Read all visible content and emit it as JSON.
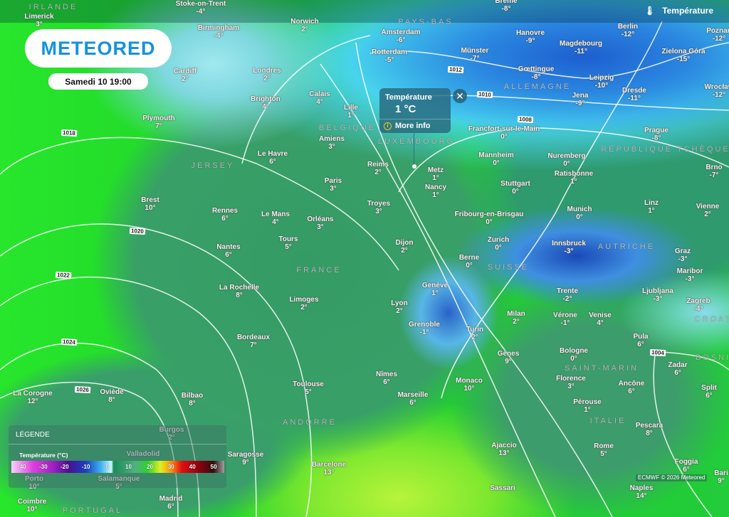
{
  "brand": "METEORED",
  "datetime": "Samedi 10 19:00",
  "layer": {
    "label": "Température",
    "icon": "thermometer-icon"
  },
  "popup": {
    "title": "Température",
    "value": "1 °C",
    "more_info": "More info",
    "close_icon": "close-icon"
  },
  "legend": {
    "title": "LÉGENDE",
    "scale_title": "Température (°C)",
    "ticks": [
      "-40",
      "-30",
      "-20",
      "-10",
      "0",
      "10",
      "20",
      "30",
      "40",
      "50"
    ]
  },
  "attribution": "ECMWF © 2026 Meteored",
  "colors": {
    "brand": "#1592e0",
    "land": "#38a067",
    "sea": "#1fd12a",
    "cold": "#2a86e0"
  },
  "countries": [
    "IRLANDE",
    "PAYS-BAS",
    "ALLEMAGNE",
    "BELGIQUE",
    "LUXEMBOURG",
    "RÉPUBLIQUE TCHÈQUE",
    "JERSEY",
    "FRANCE",
    "SUISSE",
    "AUTRICHE",
    "SAINT-MARIN",
    "ITALIE",
    "ANDORRE",
    "PORTUGAL",
    "CROATIE",
    "BOSNIE-"
  ],
  "isobars": [
    "1018",
    "1012",
    "1010",
    "1008",
    "1020",
    "1022",
    "1024",
    "1026",
    "1004"
  ],
  "cities": [
    {
      "name": "Limerick",
      "temp": "3°"
    },
    {
      "name": "Stoke-on-Trent",
      "temp": "-4°"
    },
    {
      "name": "Birmingham",
      "temp": "-4°"
    },
    {
      "name": "Norwich",
      "temp": "2°"
    },
    {
      "name": "Cardiff",
      "temp": "2°"
    },
    {
      "name": "Londres",
      "temp": "2°"
    },
    {
      "name": "Brighton",
      "temp": "4°"
    },
    {
      "name": "Plymouth",
      "temp": "7°"
    },
    {
      "name": "Calais",
      "temp": "4°"
    },
    {
      "name": "Lille",
      "temp": "1°"
    },
    {
      "name": "Amiens",
      "temp": "3°"
    },
    {
      "name": "Amsterdam",
      "temp": "-6°"
    },
    {
      "name": "Rotterdam",
      "temp": "-5°"
    },
    {
      "name": "Brême",
      "temp": "-8°"
    },
    {
      "name": "Münster",
      "temp": "-7°"
    },
    {
      "name": "Hanovre",
      "temp": "-9°"
    },
    {
      "name": "Magdebourg",
      "temp": "-11°"
    },
    {
      "name": "Berlin",
      "temp": "-12°"
    },
    {
      "name": "Poznań",
      "temp": "-12°"
    },
    {
      "name": "Zielona Góra",
      "temp": "-15°"
    },
    {
      "name": "Gœttingue",
      "temp": "-8°"
    },
    {
      "name": "Leipzig",
      "temp": "-10°"
    },
    {
      "name": "Jena",
      "temp": "-9°"
    },
    {
      "name": "Dresde",
      "temp": "-11°"
    },
    {
      "name": "Wrocław",
      "temp": "-12°"
    },
    {
      "name": "Francfort-sur-le-Main",
      "temp": "0°"
    },
    {
      "name": "Prague",
      "temp": "-8°"
    },
    {
      "name": "Mannheim",
      "temp": "0°"
    },
    {
      "name": "Nuremberg",
      "temp": "0°"
    },
    {
      "name": "Ratisbonne",
      "temp": "1°"
    },
    {
      "name": "Brno",
      "temp": "-7°"
    },
    {
      "name": "Le Havre",
      "temp": "6°"
    },
    {
      "name": "Reims",
      "temp": "2°"
    },
    {
      "name": "Metz",
      "temp": "1°"
    },
    {
      "name": "Paris",
      "temp": "3°"
    },
    {
      "name": "Nancy",
      "temp": "1°"
    },
    {
      "name": "Stuttgart",
      "temp": "0°"
    },
    {
      "name": "Brest",
      "temp": "10°"
    },
    {
      "name": "Rennes",
      "temp": "6°"
    },
    {
      "name": "Le Mans",
      "temp": "4°"
    },
    {
      "name": "Orléans",
      "temp": "3°"
    },
    {
      "name": "Troyes",
      "temp": "3°"
    },
    {
      "name": "Fribourg-en-Brisgau",
      "temp": "0°"
    },
    {
      "name": "Munich",
      "temp": "0°"
    },
    {
      "name": "Linz",
      "temp": "1°"
    },
    {
      "name": "Vienne",
      "temp": "2°"
    },
    {
      "name": "Tours",
      "temp": "5°"
    },
    {
      "name": "Dijon",
      "temp": "2°"
    },
    {
      "name": "Zurich",
      "temp": "0°"
    },
    {
      "name": "Innsbruck",
      "temp": "-3°"
    },
    {
      "name": "Graz",
      "temp": "-3°"
    },
    {
      "name": "Nantes",
      "temp": "6°"
    },
    {
      "name": "Berne",
      "temp": "0°"
    },
    {
      "name": "Maribor",
      "temp": "-3°"
    },
    {
      "name": "La Rochelle",
      "temp": "8°"
    },
    {
      "name": "Genève",
      "temp": "1°"
    },
    {
      "name": "Ljubljana",
      "temp": "-3°"
    },
    {
      "name": "Trente",
      "temp": "-2°"
    },
    {
      "name": "Zagreb",
      "temp": "-4°"
    },
    {
      "name": "Limoges",
      "temp": "2°"
    },
    {
      "name": "Lyon",
      "temp": "2°"
    },
    {
      "name": "Milan",
      "temp": "2°"
    },
    {
      "name": "Vérone",
      "temp": "-1°"
    },
    {
      "name": "Venise",
      "temp": "4°"
    },
    {
      "name": "Grenoble",
      "temp": "-1°"
    },
    {
      "name": "Turin",
      "temp": "2°"
    },
    {
      "name": "Bordeaux",
      "temp": "7°"
    },
    {
      "name": "Pula",
      "temp": "6°"
    },
    {
      "name": "Bologne",
      "temp": "0°"
    },
    {
      "name": "Gênes",
      "temp": "9°"
    },
    {
      "name": "Zadar",
      "temp": "6°"
    },
    {
      "name": "Florence",
      "temp": "3°"
    },
    {
      "name": "Ancône",
      "temp": "6°"
    },
    {
      "name": "Toulouse",
      "temp": "5°"
    },
    {
      "name": "Nîmes",
      "temp": "6°"
    },
    {
      "name": "Monaco",
      "temp": "10°"
    },
    {
      "name": "Marseille",
      "temp": "6°"
    },
    {
      "name": "Split",
      "temp": "6°"
    },
    {
      "name": "La Corogne",
      "temp": "12°"
    },
    {
      "name": "Oviède",
      "temp": "8°"
    },
    {
      "name": "Bilbao",
      "temp": "8°"
    },
    {
      "name": "Pérouse",
      "temp": "1°"
    },
    {
      "name": "Burgos",
      "temp": "2°"
    },
    {
      "name": "Pescara",
      "temp": "8°"
    },
    {
      "name": "Saragosse",
      "temp": "9°"
    },
    {
      "name": "Valladolid",
      "temp": ""
    },
    {
      "name": "Ajaccio",
      "temp": "13°"
    },
    {
      "name": "Rome",
      "temp": "5°"
    },
    {
      "name": "Foggia",
      "temp": "6°"
    },
    {
      "name": "Barcelone",
      "temp": "13°"
    },
    {
      "name": "Porto",
      "temp": "10°"
    },
    {
      "name": "Salamanque",
      "temp": "5°"
    },
    {
      "name": "Naples",
      "temp": "14°"
    },
    {
      "name": "Sassari",
      "temp": ""
    },
    {
      "name": "Madrid",
      "temp": "6°"
    },
    {
      "name": "Coimbre",
      "temp": "10°"
    },
    {
      "name": "Bari",
      "temp": "9°"
    }
  ]
}
